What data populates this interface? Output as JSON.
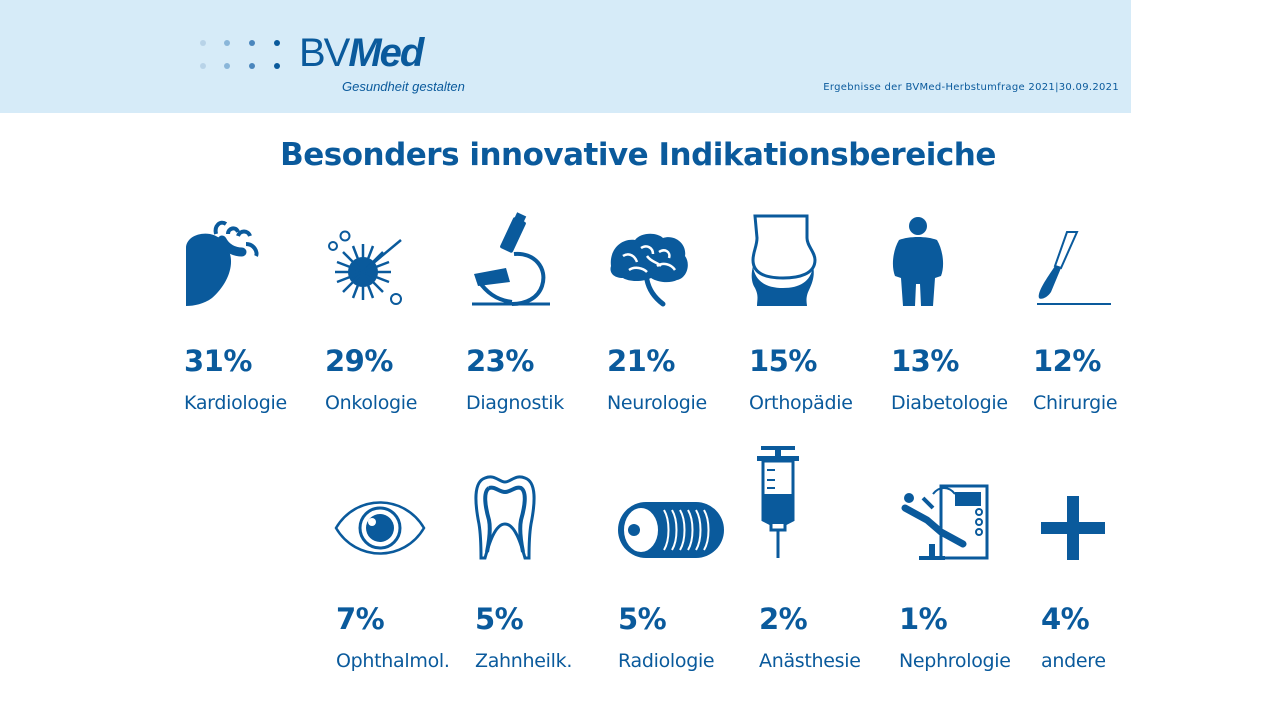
{
  "header": {
    "logo_prefix": "BV",
    "logo_suffix": "Med",
    "tagline": "Gesundheit gestalten",
    "meta": "Ergebnisse der BVMed-Herbstumfrage 2021|30.09.2021"
  },
  "colors": {
    "primary": "#0a5a9c",
    "header_bg": "#d6ebf8"
  },
  "title": "Besonders innovative Indikationsbereiche",
  "chart_data": {
    "type": "pictogram",
    "title": "Besonders innovative Indikationsbereiche",
    "unit": "%",
    "categories": [
      "Kardiologie",
      "Onkologie",
      "Diagnostik",
      "Neurologie",
      "Orthopädie",
      "Diabetologie",
      "Chirurgie",
      "Ophthalmol.",
      "Zahnheilk.",
      "Radiologie",
      "Anästhesie",
      "Nephrologie",
      "andere"
    ],
    "values": [
      31,
      29,
      23,
      21,
      15,
      13,
      12,
      7,
      5,
      5,
      2,
      1,
      4
    ],
    "items": [
      {
        "label": "Kardiologie",
        "value": 31,
        "display": "31%",
        "icon": "heart-icon"
      },
      {
        "label": "Onkologie",
        "value": 29,
        "display": "29%",
        "icon": "cancer-cell-icon"
      },
      {
        "label": "Diagnostik",
        "value": 23,
        "display": "23%",
        "icon": "microscope-icon"
      },
      {
        "label": "Neurologie",
        "value": 21,
        "display": "21%",
        "icon": "brain-icon"
      },
      {
        "label": "Orthopädie",
        "value": 15,
        "display": "15%",
        "icon": "joint-icon"
      },
      {
        "label": "Diabetologie",
        "value": 13,
        "display": "13%",
        "icon": "person-icon"
      },
      {
        "label": "Chirurgie",
        "value": 12,
        "display": "12%",
        "icon": "scalpel-icon"
      },
      {
        "label": "Ophthalmol.",
        "value": 7,
        "display": "7%",
        "icon": "eye-icon"
      },
      {
        "label": "Zahnheilk.",
        "value": 5,
        "display": "5%",
        "icon": "tooth-icon"
      },
      {
        "label": "Radiologie",
        "value": 5,
        "display": "5%",
        "icon": "ct-scanner-icon"
      },
      {
        "label": "Anästhesie",
        "value": 2,
        "display": "2%",
        "icon": "syringe-icon"
      },
      {
        "label": "Nephrologie",
        "value": 1,
        "display": "1%",
        "icon": "dialysis-icon"
      },
      {
        "label": "andere",
        "value": 4,
        "display": "4%",
        "icon": "plus-icon"
      }
    ]
  }
}
